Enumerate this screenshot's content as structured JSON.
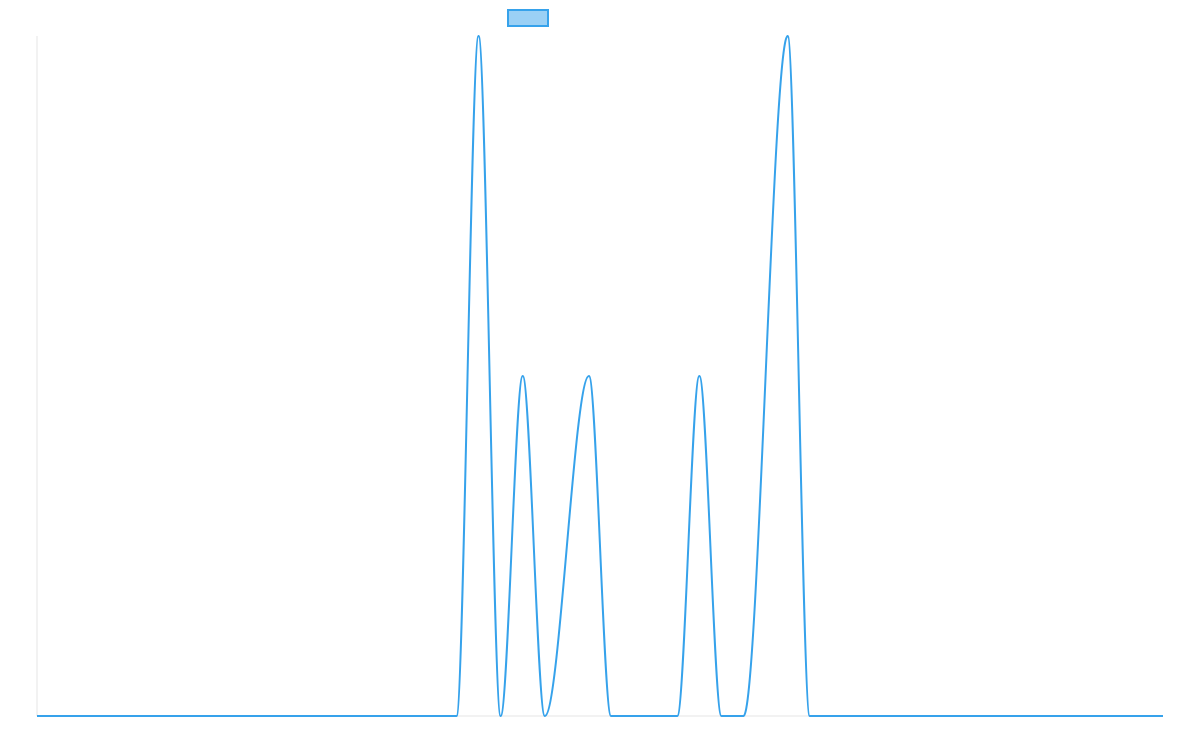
{
  "chart_data": {
    "type": "line",
    "title": "",
    "xlabel": "",
    "ylabel": "",
    "legend": {
      "placement": "top-center",
      "entries": [
        {
          "label": "",
          "color": "#36a2eb",
          "fill": "#9ad0f5"
        }
      ]
    },
    "grid": false,
    "xlim": [
      0,
      51
    ],
    "ylim": [
      0,
      2
    ],
    "series": [
      {
        "line_color": "#36a2eb",
        "x": [
          0,
          19,
          20,
          21,
          22,
          23,
          25,
          26,
          29,
          30,
          31,
          32,
          34,
          35,
          51
        ],
        "values": [
          0,
          0,
          2,
          0,
          1,
          0,
          1,
          0,
          0,
          1,
          0,
          0,
          2,
          0,
          0
        ]
      }
    ]
  }
}
